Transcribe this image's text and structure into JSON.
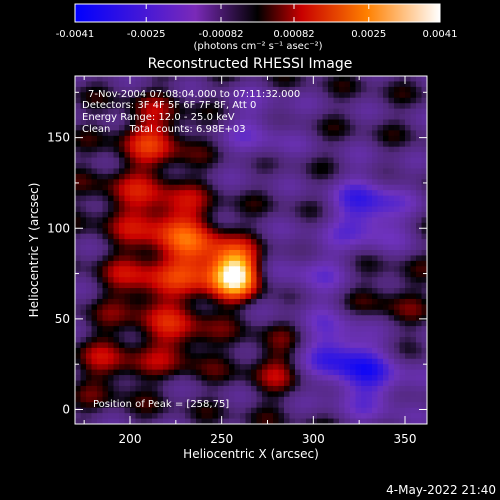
{
  "colorbar": {
    "ticks": [
      "-0.0041",
      "-0.0025",
      "-0.00082",
      "0.00082",
      "0.0025",
      "0.0041"
    ],
    "range": [
      -0.0041,
      0.0041
    ],
    "unit": "(photons cm⁻² s⁻¹ asec⁻²)"
  },
  "chart_data": {
    "type": "heatmap",
    "title": "Reconstructed RHESSI Image",
    "xlabel": "Heliocentric X (arcsec)",
    "ylabel": "Heliocentric Y (arcsec)",
    "xlim": [
      170,
      362
    ],
    "ylim": [
      -8,
      184
    ],
    "xticks": [
      "200",
      "250",
      "300",
      "350"
    ],
    "yticks": [
      "0",
      "50",
      "100",
      "150"
    ],
    "annotations": [
      "7-Nov-2004 07:08:04.000 to 07:11:32.000",
      "Detectors: 3F 4F 5F 6F 7F 8F, Att 0",
      "Energy Range: 12.0 - 25.0 keV",
      "Clean      Total counts: 6.98E+03"
    ],
    "peak_label": "Position of Peak = [258,75]",
    "peak": [
      258,
      75
    ],
    "sources": [
      {
        "x": 258,
        "y": 75,
        "amp": 0.0041
      },
      {
        "x": 240,
        "y": 82,
        "amp": 0.0022
      },
      {
        "x": 222,
        "y": 105,
        "amp": 0.0018
      },
      {
        "x": 213,
        "y": 150,
        "amp": 0.0018
      },
      {
        "x": 206,
        "y": 70,
        "amp": 0.0015
      },
      {
        "x": 227,
        "y": 40,
        "amp": 0.0015
      },
      {
        "x": 190,
        "y": 25,
        "amp": 0.0012
      },
      {
        "x": 282,
        "y": 25,
        "amp": 0.0012
      },
      {
        "x": 195,
        "y": 115,
        "amp": 0.001
      },
      {
        "x": 340,
        "y": 60,
        "amp": 0.0008
      },
      {
        "x": 330,
        "y": 110,
        "amp": -0.0025
      },
      {
        "x": 312,
        "y": 30,
        "amp": -0.0025
      },
      {
        "x": 335,
        "y": 15,
        "amp": -0.0018
      },
      {
        "x": 270,
        "y": 155,
        "amp": -0.0012
      },
      {
        "x": 300,
        "y": 75,
        "amp": -0.0012
      }
    ]
  },
  "timestamp": "4-May-2022 21:40"
}
